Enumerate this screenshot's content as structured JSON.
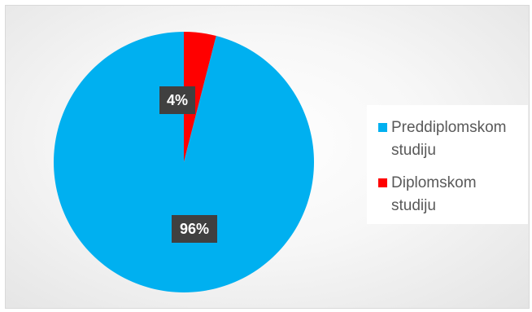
{
  "chart_data": {
    "type": "pie",
    "categories": [
      "Preddiplomskom studiju",
      "Diplomskom studiju"
    ],
    "values": [
      96,
      4
    ],
    "data_labels": [
      "96%",
      "4%"
    ],
    "colors": [
      "#00B0F0",
      "#FF0000"
    ],
    "legend_position": "right",
    "title": ""
  },
  "legend": {
    "items": [
      {
        "label_line1": "Preddiplomskom",
        "label_line2": "studiju",
        "color": "#00B0F0"
      },
      {
        "label_line1": "Diplomskom",
        "label_line2": "studiju",
        "color": "#FF0000"
      }
    ]
  }
}
